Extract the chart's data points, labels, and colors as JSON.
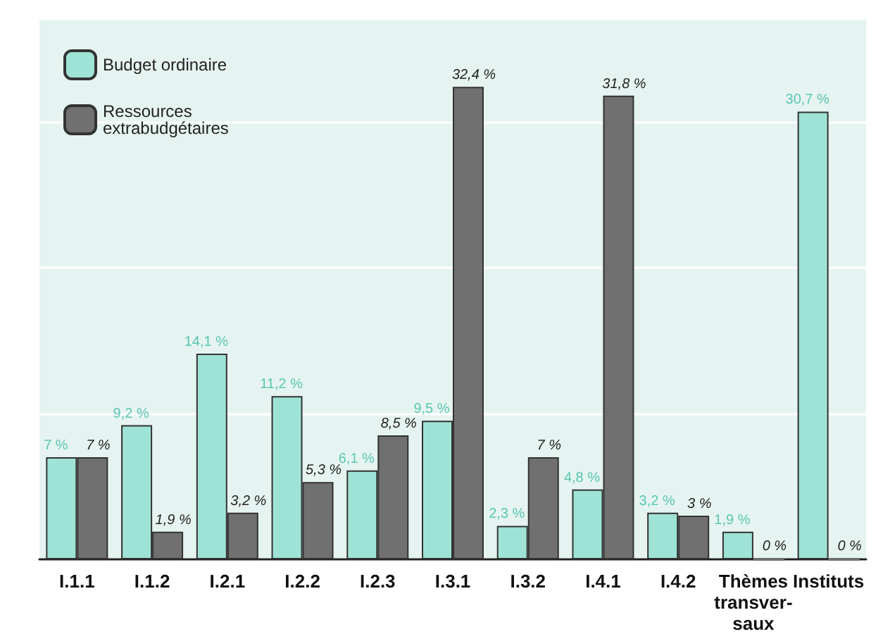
{
  "chart_data": {
    "type": "bar",
    "categories": [
      "I.1.1",
      "I.1.2",
      "I.2.1",
      "I.2.2",
      "I.2.3",
      "I.3.1",
      "I.3.2",
      "I.4.1",
      "I.4.2",
      "Thèmes\ntransver-\nsaux",
      "Instituts"
    ],
    "series": [
      {
        "name": "Budget ordinaire",
        "color": "#9fe3d6",
        "values": [
          7,
          9.2,
          14.1,
          11.2,
          6.1,
          9.5,
          2.3,
          4.8,
          3.2,
          1.9,
          30.7
        ],
        "value_labels": [
          "7 %",
          "9,2 %",
          "14,1 %",
          "11,2 %",
          "6,1 %",
          "9,5 %",
          "2,3 %",
          "4,8 %",
          "3,2 %",
          "1,9 %",
          "30,7 %"
        ]
      },
      {
        "name": "Ressources\nextrabudgétaires",
        "color": "#707070",
        "values": [
          7,
          1.9,
          3.2,
          5.3,
          8.5,
          32.4,
          7,
          31.8,
          3,
          0,
          0
        ],
        "value_labels": [
          "7 %",
          "1,9 %",
          "3,2 %",
          "5,3 %",
          "8,5 %",
          "32,4 %",
          "7 %",
          "31,8 %",
          "3 %",
          "0 %",
          "0 %"
        ]
      }
    ],
    "ylim": [
      0,
      37
    ],
    "yticks": [
      {
        "value": 0,
        "label": null
      },
      {
        "value": 10,
        "label": null
      },
      {
        "value": 20,
        "label": null
      },
      {
        "value": 30,
        "label": null
      }
    ],
    "tick_labels": "x",
    "grid": "y",
    "legend": "top left"
  }
}
